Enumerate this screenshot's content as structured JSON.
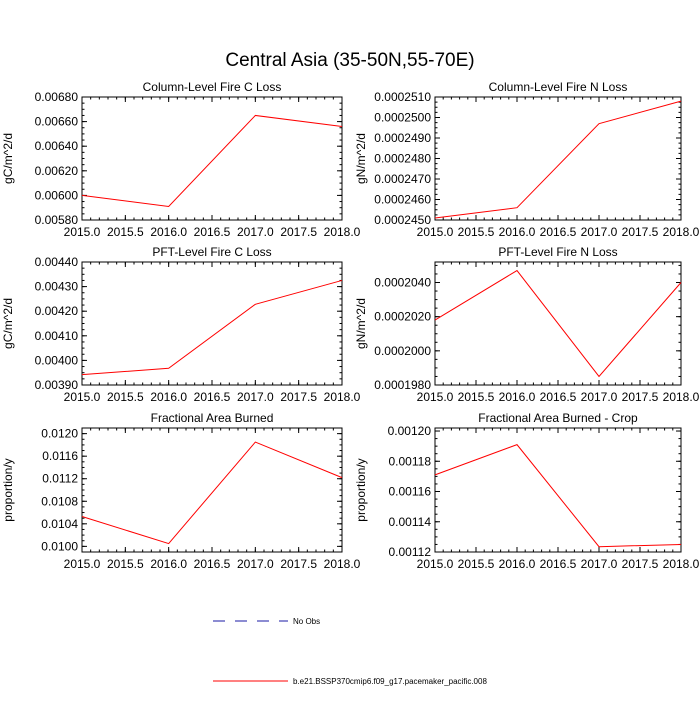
{
  "page": {
    "title": "Central Asia (35-50N,55-70E)"
  },
  "colors": {
    "series_line": "#ff0000",
    "obs_line": "#1a1aa6",
    "axis": "#000000",
    "background": "#ffffff"
  },
  "legend": {
    "position": "bottom-center",
    "entries": [
      {
        "label": "No Obs",
        "style": "dashed",
        "color": "#1a1aa6"
      },
      {
        "label": "b.e21.BSSP370cmip6.f09_g17.pacemaker_pacific.008",
        "style": "solid",
        "color": "#ff0000"
      }
    ]
  },
  "chart_data": [
    {
      "type": "line",
      "title": "Column-Level Fire C Loss",
      "xlabel": "",
      "ylabel": "gC/m^2/d",
      "x": [
        2015,
        2016,
        2017,
        2018
      ],
      "series": [
        {
          "values": [
            0.006,
            0.00591,
            0.00665,
            0.00656
          ]
        }
      ],
      "xlim": [
        2015.0,
        2018.0
      ],
      "ylim": [
        0.0058,
        0.0068
      ],
      "xticks": [
        "2015.0",
        "2015.5",
        "2016.0",
        "2016.5",
        "2017.0",
        "2017.5",
        "2018.0"
      ],
      "yticks": [
        "0.00580",
        "0.00600",
        "0.00620",
        "0.00640",
        "0.00660",
        "0.00680"
      ],
      "grid": false
    },
    {
      "type": "line",
      "title": "Column-Level Fire N Loss",
      "xlabel": "",
      "ylabel": "gN/m^2/d",
      "x": [
        2015,
        2016,
        2017,
        2018
      ],
      "series": [
        {
          "values": [
            0.0002451,
            0.0002456,
            0.0002497,
            0.0002508
          ]
        }
      ],
      "xlim": [
        2015.0,
        2018.0
      ],
      "ylim": [
        0.000245,
        0.000251
      ],
      "xticks": [
        "2015.0",
        "2015.5",
        "2016.0",
        "2016.5",
        "2017.0",
        "2017.5",
        "2018.0"
      ],
      "yticks": [
        "0.0002450",
        "0.0002460",
        "0.0002470",
        "0.0002480",
        "0.0002490",
        "0.0002500",
        "0.0002510"
      ],
      "grid": false
    },
    {
      "type": "line",
      "title": "PFT-Level Fire C Loss",
      "xlabel": "",
      "ylabel": "gC/m^2/d",
      "x": [
        2015,
        2016,
        2017,
        2018
      ],
      "series": [
        {
          "values": [
            0.003942,
            0.003968,
            0.004228,
            0.004325
          ]
        }
      ],
      "xlim": [
        2015.0,
        2018.0
      ],
      "ylim": [
        0.0039,
        0.0044
      ],
      "xticks": [
        "2015.0",
        "2015.5",
        "2016.0",
        "2016.5",
        "2017.0",
        "2017.5",
        "2018.0"
      ],
      "yticks": [
        "0.00390",
        "0.00400",
        "0.00410",
        "0.00420",
        "0.00430",
        "0.00440"
      ],
      "grid": false
    },
    {
      "type": "line",
      "title": "PFT-Level Fire N Loss",
      "xlabel": "",
      "ylabel": "gN/m^2/d",
      "x": [
        2015,
        2016,
        2017,
        2018
      ],
      "series": [
        {
          "values": [
            0.0002018,
            0.0002047,
            0.0001985,
            0.000204
          ]
        }
      ],
      "xlim": [
        2015.0,
        2018.0
      ],
      "ylim": [
        0.000198,
        0.0002052
      ],
      "xticks": [
        "2015.0",
        "2015.5",
        "2016.0",
        "2016.5",
        "2017.0",
        "2017.5",
        "2018.0"
      ],
      "yticks": [
        "0.0001980",
        "0.0002000",
        "0.0002020",
        "0.0002040"
      ],
      "grid": false
    },
    {
      "type": "line",
      "title": "Fractional Area Burned",
      "xlabel": "",
      "ylabel": "proportion/y",
      "x": [
        2015,
        2016,
        2017,
        2018
      ],
      "series": [
        {
          "values": [
            0.01053,
            0.01005,
            0.01185,
            0.01122
          ]
        }
      ],
      "xlim": [
        2015.0,
        2018.0
      ],
      "ylim": [
        0.0099,
        0.0121
      ],
      "xticks": [
        "2015.0",
        "2015.5",
        "2016.0",
        "2016.5",
        "2017.0",
        "2017.5",
        "2018.0"
      ],
      "yticks": [
        "0.0100",
        "0.0104",
        "0.0108",
        "0.0112",
        "0.0116",
        "0.0120"
      ],
      "grid": false
    },
    {
      "type": "line",
      "title": "Fractional Area Burned - Crop",
      "xlabel": "",
      "ylabel": "proportion/y",
      "x": [
        2015,
        2016,
        2017,
        2018
      ],
      "series": [
        {
          "values": [
            0.001171,
            0.001191,
            0.0011235,
            0.001125
          ]
        }
      ],
      "xlim": [
        2015.0,
        2018.0
      ],
      "ylim": [
        0.00112,
        0.001202
      ],
      "xticks": [
        "2015.0",
        "2015.5",
        "2016.0",
        "2016.5",
        "2017.0",
        "2017.5",
        "2018.0"
      ],
      "yticks": [
        "0.00112",
        "0.00114",
        "0.00116",
        "0.00118",
        "0.00120"
      ],
      "grid": false
    }
  ]
}
